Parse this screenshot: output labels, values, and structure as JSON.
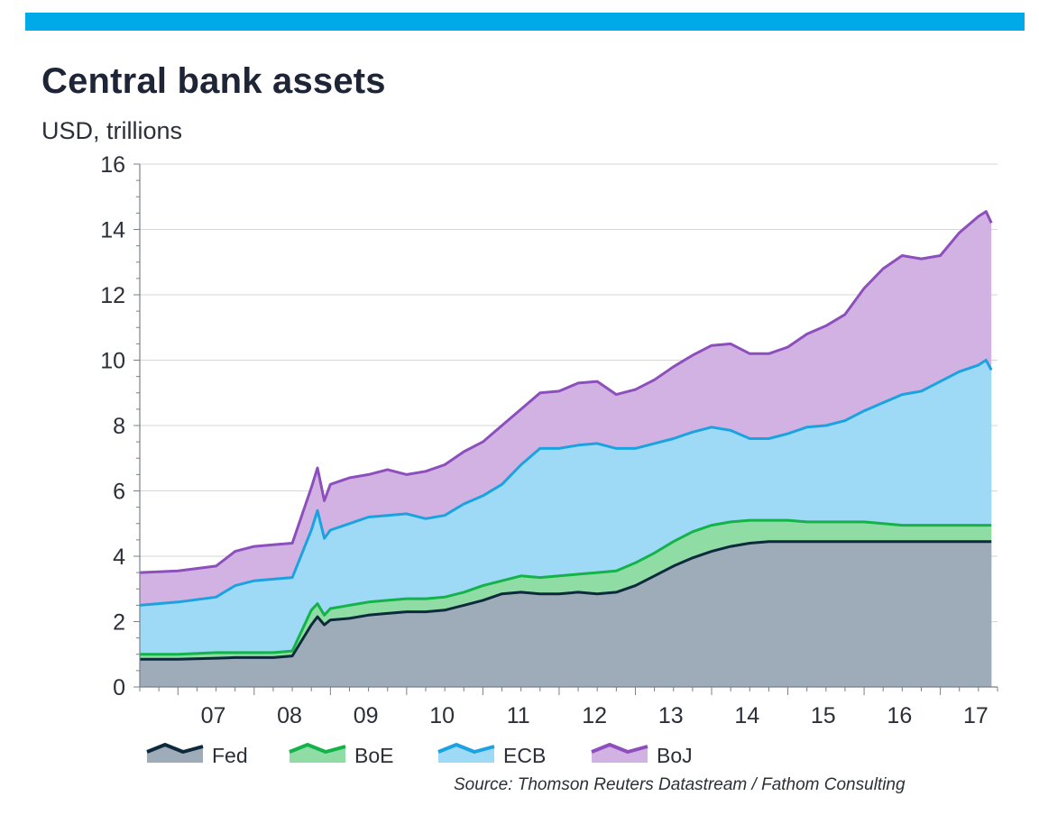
{
  "header": {
    "title": "Central bank assets",
    "unit": "USD, trillions",
    "source": "Source: Thomson Reuters Datastream / Fathom Consulting"
  },
  "colors": {
    "top_bar": "#00a9e8",
    "fed_fill": "#9eabb8",
    "fed_line": "#0d2a3c",
    "boe_fill": "#8fdca5",
    "boe_line": "#13b34a",
    "ecb_fill": "#9edaf5",
    "ecb_line": "#1aa3e0",
    "boj_fill": "#d2b2e2",
    "boj_line": "#8d4fbc"
  },
  "chart_data": {
    "type": "area",
    "stacked": true,
    "title": "Central bank assets",
    "ylabel": "USD, trillions",
    "ylim": [
      0,
      16
    ],
    "yticks": [
      "0",
      "2",
      "4",
      "6",
      "8",
      "10",
      "12",
      "14",
      "16"
    ],
    "xlim": [
      2006.5,
      2017.75
    ],
    "xticks": [
      {
        "label": "07",
        "x": 2007
      },
      {
        "label": "08",
        "x": 2008
      },
      {
        "label": "09",
        "x": 2009
      },
      {
        "label": "10",
        "x": 2010
      },
      {
        "label": "11",
        "x": 2011
      },
      {
        "label": "12",
        "x": 2012
      },
      {
        "label": "13",
        "x": 2013
      },
      {
        "label": "14",
        "x": 2014
      },
      {
        "label": "15",
        "x": 2015
      },
      {
        "label": "16",
        "x": 2016
      },
      {
        "label": "17",
        "x": 2017
      }
    ],
    "grid": true,
    "legend_position": "bottom",
    "x": [
      2006.5,
      2007.0,
      2007.5,
      2007.75,
      2008.0,
      2008.25,
      2008.5,
      2008.75,
      2008.83,
      2008.92,
      2009.0,
      2009.25,
      2009.5,
      2009.75,
      2010.0,
      2010.25,
      2010.5,
      2010.75,
      2011.0,
      2011.25,
      2011.5,
      2011.75,
      2012.0,
      2012.25,
      2012.5,
      2012.75,
      2013.0,
      2013.25,
      2013.5,
      2013.75,
      2014.0,
      2014.25,
      2014.5,
      2014.75,
      2015.0,
      2015.25,
      2015.5,
      2015.75,
      2016.0,
      2016.25,
      2016.5,
      2016.75,
      2017.0,
      2017.25,
      2017.5,
      2017.6,
      2017.67
    ],
    "series": [
      {
        "name": "Fed",
        "values": [
          0.85,
          0.85,
          0.88,
          0.9,
          0.9,
          0.9,
          0.95,
          1.9,
          2.15,
          1.9,
          2.05,
          2.1,
          2.2,
          2.25,
          2.3,
          2.3,
          2.35,
          2.5,
          2.65,
          2.85,
          2.9,
          2.85,
          2.85,
          2.9,
          2.85,
          2.9,
          3.1,
          3.4,
          3.7,
          3.95,
          4.15,
          4.3,
          4.4,
          4.45,
          4.45,
          4.45,
          4.45,
          4.45,
          4.45,
          4.45,
          4.45,
          4.45,
          4.45,
          4.45,
          4.45,
          4.45,
          4.45
        ]
      },
      {
        "name": "BoE",
        "values": [
          1.0,
          1.0,
          1.05,
          1.05,
          1.05,
          1.05,
          1.1,
          2.35,
          2.55,
          2.2,
          2.4,
          2.5,
          2.6,
          2.65,
          2.7,
          2.7,
          2.75,
          2.9,
          3.1,
          3.25,
          3.4,
          3.35,
          3.4,
          3.45,
          3.5,
          3.55,
          3.8,
          4.1,
          4.45,
          4.75,
          4.95,
          5.05,
          5.1,
          5.1,
          5.1,
          5.05,
          5.05,
          5.05,
          5.05,
          5.0,
          4.95,
          4.95,
          4.95,
          4.95,
          4.95,
          4.95,
          4.95
        ]
      },
      {
        "name": "ECB",
        "values": [
          2.5,
          2.6,
          2.75,
          3.1,
          3.25,
          3.3,
          3.35,
          4.8,
          5.4,
          4.55,
          4.8,
          5.0,
          5.2,
          5.25,
          5.3,
          5.15,
          5.25,
          5.6,
          5.85,
          6.2,
          6.8,
          7.3,
          7.3,
          7.4,
          7.45,
          7.3,
          7.3,
          7.45,
          7.6,
          7.8,
          7.95,
          7.85,
          7.6,
          7.6,
          7.75,
          7.95,
          8.0,
          8.15,
          8.45,
          8.7,
          8.95,
          9.05,
          9.35,
          9.65,
          9.85,
          10.0,
          9.7
        ]
      },
      {
        "name": "BoJ",
        "values": [
          3.5,
          3.55,
          3.7,
          4.15,
          4.3,
          4.35,
          4.4,
          6.1,
          6.7,
          5.7,
          6.2,
          6.4,
          6.5,
          6.65,
          6.5,
          6.6,
          6.8,
          7.2,
          7.5,
          8.0,
          8.5,
          9.0,
          9.05,
          9.3,
          9.35,
          8.95,
          9.1,
          9.4,
          9.8,
          10.15,
          10.45,
          10.5,
          10.2,
          10.2,
          10.4,
          10.8,
          11.05,
          11.4,
          12.2,
          12.8,
          13.2,
          13.1,
          13.2,
          13.9,
          14.4,
          14.55,
          14.2
        ]
      }
    ]
  }
}
